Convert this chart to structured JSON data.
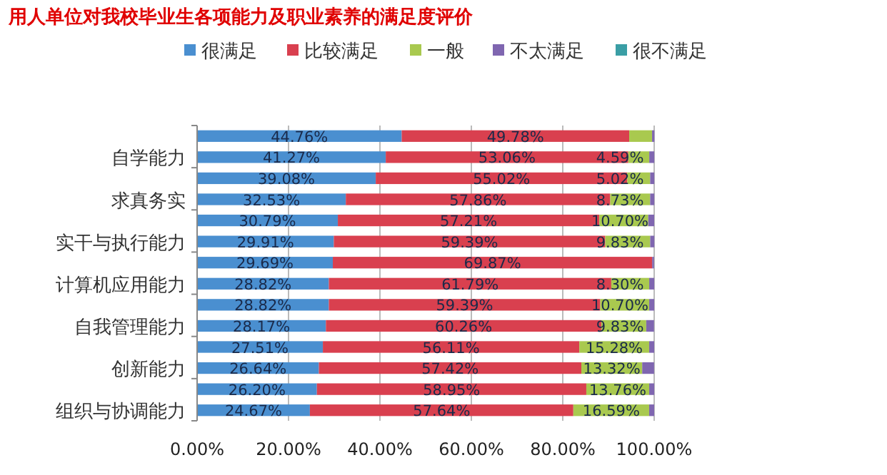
{
  "chart_data": {
    "type": "bar",
    "orientation": "horizontal",
    "stacked": true,
    "title": "用人单位对我校毕业生各项能力及职业素养的满足度评价",
    "categories": [
      null,
      "自学能力",
      null,
      "求真务实",
      null,
      "实干与执行能力",
      null,
      "计算机应用能力",
      null,
      "自我管理能力",
      null,
      "创新能力",
      null,
      "组织与协调能力"
    ],
    "series": [
      {
        "name": "很满足",
        "color": "#4a8fd0",
        "values": [
          44.76,
          41.27,
          39.08,
          32.53,
          30.79,
          29.91,
          29.69,
          28.82,
          28.82,
          28.17,
          27.51,
          26.64,
          26.2,
          24.67
        ],
        "value_labels": [
          "44.76%",
          "41.27%",
          "39.08%",
          "32.53%",
          "30.79%",
          "29.91%",
          "29.69%",
          "28.82%",
          "28.82%",
          "28.17%",
          "27.51%",
          "26.64%",
          "26.20%",
          "24.67%"
        ]
      },
      {
        "name": "比较满足",
        "color": "#d9404f",
        "values": [
          49.78,
          53.06,
          55.02,
          57.86,
          57.21,
          59.39,
          69.87,
          61.79,
          59.39,
          60.26,
          56.11,
          57.42,
          58.95,
          57.64
        ],
        "value_labels": [
          "49.78%",
          "53.06%",
          "55.02%",
          "57.86%",
          "57.21%",
          "59.39%",
          "69.87%",
          "61.79%",
          "59.39%",
          "60.26%",
          "56.11%",
          "57.42%",
          "58.95%",
          "57.64%"
        ]
      },
      {
        "name": "一般",
        "color": "#a9c94f",
        "values": [
          5.0,
          4.59,
          5.02,
          8.73,
          10.7,
          9.83,
          0,
          8.3,
          10.7,
          9.83,
          15.28,
          13.32,
          13.76,
          16.59
        ],
        "value_labels": [
          null,
          "4.59%",
          "5.02%",
          "8.73%",
          "10.70%",
          "9.83%",
          null,
          "8.30%",
          "10.70%",
          "9.83%",
          "15.28%",
          "13.32%",
          "13.76%",
          "16.59%"
        ]
      },
      {
        "name": "不太满足",
        "color": "#7f66b0",
        "values": [
          0.5,
          1.1,
          0.9,
          0.9,
          1.3,
          0.9,
          0.4,
          1.1,
          1.1,
          1.7,
          1.1,
          2.6,
          1.1,
          1.1
        ]
      },
      {
        "name": "很不满足",
        "color": "#3a9ea5",
        "values": [
          0,
          0,
          0,
          0,
          0,
          0,
          0,
          0,
          0,
          0,
          0,
          0,
          0,
          0
        ]
      }
    ],
    "xlim": [
      0,
      100
    ],
    "xticks": [
      {
        "value": 0,
        "label": "0.00%"
      },
      {
        "value": 20,
        "label": "20.00%"
      },
      {
        "value": 40,
        "label": "40.00%"
      },
      {
        "value": 60,
        "label": "60.00%"
      },
      {
        "value": 80,
        "label": "80.00%"
      },
      {
        "value": 100,
        "label": "100.00%"
      }
    ],
    "grid": "x",
    "legend": "top"
  }
}
